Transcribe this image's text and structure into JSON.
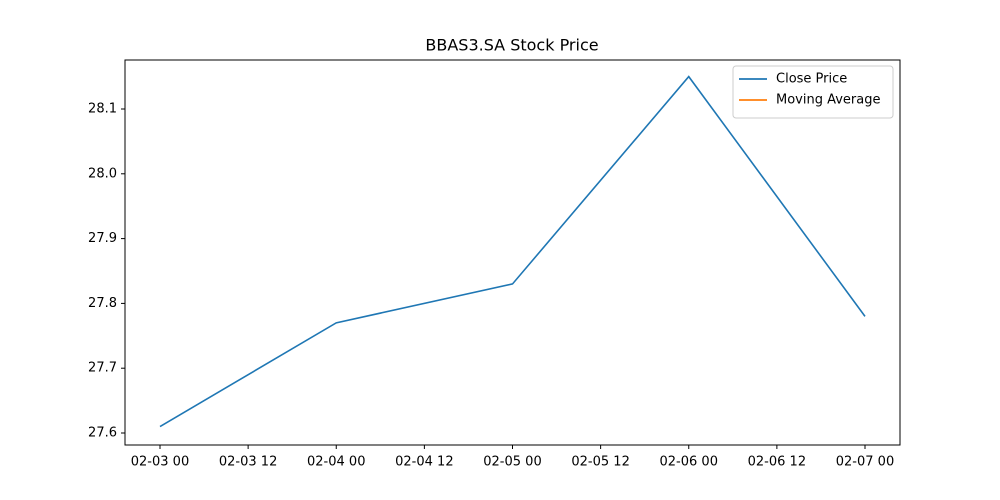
{
  "chart_data": {
    "type": "line",
    "title": "BBAS3.SA Stock Price",
    "x": [
      3,
      4,
      5,
      6,
      7
    ],
    "series": [
      {
        "name": "Close Price",
        "color": "#1f77b4",
        "values": [
          27.61,
          27.77,
          27.83,
          28.15,
          27.78
        ]
      },
      {
        "name": "Moving Average",
        "color": "#ff7f0e",
        "values": [
          null,
          null,
          null,
          null,
          null
        ]
      }
    ],
    "xlim": [
      2.8014,
      7.1986
    ],
    "xticks": [
      {
        "value": 3,
        "label": "02-03 00"
      },
      {
        "value": 3.5,
        "label": "02-03 12"
      },
      {
        "value": 4,
        "label": "02-04 00"
      },
      {
        "value": 4.5,
        "label": "02-04 12"
      },
      {
        "value": 5,
        "label": "02-05 00"
      },
      {
        "value": 5.5,
        "label": "02-05 12"
      },
      {
        "value": 6,
        "label": "02-06 00"
      },
      {
        "value": 6.5,
        "label": "02-06 12"
      },
      {
        "value": 7,
        "label": "02-07 00"
      }
    ],
    "ylim": [
      27.5815,
      28.1756
    ],
    "yticks": [
      27.6,
      27.7,
      27.8,
      27.9,
      {
        "value": 28,
        "label": "28.0"
      },
      28.1
    ],
    "legend": "upper right",
    "grid": false
  }
}
